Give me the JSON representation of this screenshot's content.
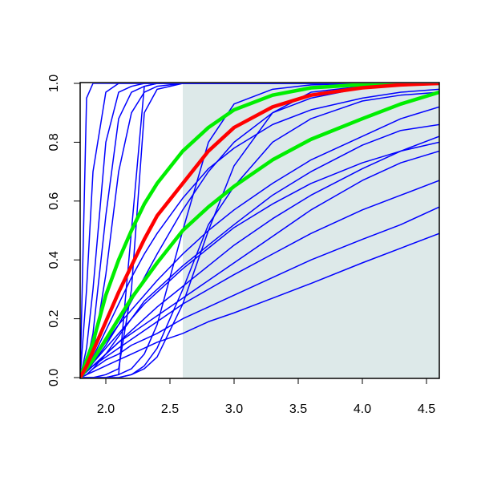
{
  "chart_data": {
    "type": "line",
    "x": [
      1.8,
      1.85,
      1.9,
      2.0,
      2.1,
      2.2,
      2.3,
      2.4,
      2.6,
      2.8,
      3.0,
      3.3,
      3.6,
      4.0,
      4.3,
      4.6
    ],
    "xlim": [
      1.8,
      4.6
    ],
    "ylim": [
      0,
      1
    ],
    "xticks": [
      {
        "value": 2.0,
        "label": "2.0"
      },
      {
        "value": 2.5,
        "label": "2.5"
      },
      {
        "value": 3.0,
        "label": "3.0"
      },
      {
        "value": 3.5,
        "label": "3.5"
      },
      {
        "value": 4.0,
        "label": "4.0"
      },
      {
        "value": 4.5,
        "label": "4.5"
      }
    ],
    "yticks": [
      {
        "value": 0,
        "label": "0.0"
      },
      {
        "value": 0.2,
        "label": "0.2"
      },
      {
        "value": 0.4,
        "label": "0.4"
      },
      {
        "value": 0.6,
        "label": "0.6"
      },
      {
        "value": 0.8,
        "label": "0.8"
      },
      {
        "value": 1,
        "label": "1.0"
      }
    ],
    "grid": false,
    "highlight": {
      "x": [
        2.6,
        4.6
      ],
      "color": "#dde9e9"
    },
    "series": [
      {
        "color": "#0000ff",
        "line_width": 1.5,
        "values": [
          0,
          0.95,
          1,
          1,
          1,
          1,
          1,
          1,
          1,
          1,
          1,
          1,
          1,
          1,
          1,
          1
        ]
      },
      {
        "color": "#0000ff",
        "line_width": 1.5,
        "values": [
          0,
          0.3,
          0.7,
          0.97,
          1,
          1,
          1,
          1,
          1,
          1,
          1,
          1,
          1,
          1,
          1,
          1
        ]
      },
      {
        "color": "#0000ff",
        "line_width": 1.5,
        "values": [
          0,
          0.1,
          0.3,
          0.8,
          0.97,
          0.99,
          1,
          1,
          1,
          1,
          1,
          1,
          1,
          1,
          1,
          1
        ]
      },
      {
        "color": "#0000ff",
        "line_width": 1.5,
        "values": [
          0,
          0.05,
          0.15,
          0.55,
          0.88,
          0.97,
          0.99,
          1,
          1,
          1,
          1,
          1,
          1,
          1,
          1,
          1
        ]
      },
      {
        "color": "#0000ff",
        "line_width": 1.5,
        "values": [
          0,
          0.02,
          0.08,
          0.35,
          0.7,
          0.9,
          0.97,
          0.99,
          1,
          1,
          1,
          1,
          1,
          1,
          1,
          1
        ]
      },
      {
        "color": "#0000ff",
        "line_width": 1.5,
        "values": [
          0,
          0,
          0,
          0,
          0.01,
          0.5,
          0.99,
          1,
          1,
          1,
          1,
          1,
          1,
          1,
          1,
          1
        ]
      },
      {
        "color": "#0000ff",
        "line_width": 1.5,
        "values": [
          0,
          0,
          0,
          0.01,
          0.03,
          0.3,
          0.9,
          0.98,
          1,
          1,
          1,
          1,
          1,
          1,
          1,
          1
        ]
      },
      {
        "color": "#0000ff",
        "line_width": 1.5,
        "values": [
          0,
          0,
          0,
          0,
          0.01,
          0.03,
          0.08,
          0.18,
          0.5,
          0.8,
          0.93,
          0.98,
          0.995,
          1,
          1,
          1
        ]
      },
      {
        "color": "#0000ff",
        "line_width": 1.5,
        "values": [
          0,
          0,
          0,
          0,
          0,
          0.01,
          0.03,
          0.07,
          0.25,
          0.5,
          0.72,
          0.9,
          0.97,
          0.99,
          1,
          1
        ]
      },
      {
        "color": "#0000ff",
        "line_width": 1.5,
        "values": [
          0,
          0.02,
          0.04,
          0.08,
          0.12,
          0.16,
          0.2,
          0.24,
          0.31,
          0.38,
          0.45,
          0.54,
          0.62,
          0.71,
          0.77,
          0.82
        ]
      },
      {
        "color": "#0000ff",
        "line_width": 1.5,
        "values": [
          0,
          0.02,
          0.04,
          0.07,
          0.1,
          0.13,
          0.16,
          0.19,
          0.25,
          0.3,
          0.35,
          0.42,
          0.49,
          0.57,
          0.62,
          0.67
        ]
      },
      {
        "color": "#0000ff",
        "line_width": 1.5,
        "values": [
          0,
          0.01,
          0.03,
          0.06,
          0.08,
          0.11,
          0.13,
          0.15,
          0.2,
          0.24,
          0.28,
          0.34,
          0.4,
          0.47,
          0.52,
          0.58
        ]
      },
      {
        "color": "#0000ff",
        "line_width": 1.5,
        "values": [
          0,
          0.01,
          0.02,
          0.04,
          0.06,
          0.08,
          0.1,
          0.12,
          0.15,
          0.19,
          0.22,
          0.27,
          0.32,
          0.39,
          0.44,
          0.49
        ]
      },
      {
        "color": "#0000ff",
        "line_width": 1.5,
        "values": [
          0,
          0.03,
          0.06,
          0.12,
          0.18,
          0.23,
          0.28,
          0.33,
          0.42,
          0.5,
          0.57,
          0.66,
          0.74,
          0.82,
          0.88,
          0.92
        ]
      },
      {
        "color": "#0000ff",
        "line_width": 1.5,
        "values": [
          0,
          0.02,
          0.05,
          0.1,
          0.15,
          0.2,
          0.25,
          0.29,
          0.37,
          0.44,
          0.51,
          0.59,
          0.66,
          0.73,
          0.77,
          0.8
        ]
      },
      {
        "color": "#0000ff",
        "line_width": 1.5,
        "values": [
          0,
          0.03,
          0.07,
          0.16,
          0.25,
          0.34,
          0.42,
          0.49,
          0.61,
          0.71,
          0.78,
          0.86,
          0.91,
          0.95,
          0.97,
          0.98
        ]
      },
      {
        "color": "#0000ff",
        "line_width": 1.5,
        "values": [
          0,
          0.01,
          0.03,
          0.08,
          0.14,
          0.2,
          0.26,
          0.3,
          0.38,
          0.45,
          0.52,
          0.62,
          0.7,
          0.79,
          0.84,
          0.86
        ]
      },
      {
        "color": "#0000ff",
        "line_width": 1.5,
        "values": [
          0,
          0.02,
          0.05,
          0.11,
          0.18,
          0.26,
          0.34,
          0.42,
          0.57,
          0.7,
          0.8,
          0.9,
          0.95,
          0.985,
          0.995,
          1
        ]
      },
      {
        "color": "#0000ff",
        "line_width": 1.5,
        "values": [
          0,
          0.02,
          0.04,
          0.08,
          0.12,
          0.15,
          0.18,
          0.21,
          0.27,
          0.33,
          0.39,
          0.48,
          0.57,
          0.67,
          0.73,
          0.77
        ]
      },
      {
        "color": "#0000ff",
        "line_width": 1.5,
        "values": [
          0,
          0,
          0,
          0,
          0,
          0.01,
          0.04,
          0.1,
          0.3,
          0.52,
          0.65,
          0.8,
          0.88,
          0.94,
          0.96,
          0.97
        ]
      },
      {
        "color": "#00ee00",
        "line_width": 4.5,
        "values": [
          0,
          0.06,
          0.12,
          0.28,
          0.4,
          0.5,
          0.59,
          0.66,
          0.77,
          0.85,
          0.91,
          0.96,
          0.985,
          0.996,
          1,
          1
        ]
      },
      {
        "color": "#00ee00",
        "line_width": 4.5,
        "values": [
          0,
          0.03,
          0.06,
          0.13,
          0.2,
          0.27,
          0.33,
          0.39,
          0.5,
          0.58,
          0.65,
          0.74,
          0.81,
          0.88,
          0.93,
          0.97
        ]
      },
      {
        "color": "#ff0000",
        "line_width": 4.5,
        "values": [
          0,
          0.04,
          0.09,
          0.19,
          0.29,
          0.38,
          0.47,
          0.55,
          0.66,
          0.77,
          0.85,
          0.92,
          0.96,
          0.985,
          0.995,
          1
        ]
      }
    ]
  }
}
